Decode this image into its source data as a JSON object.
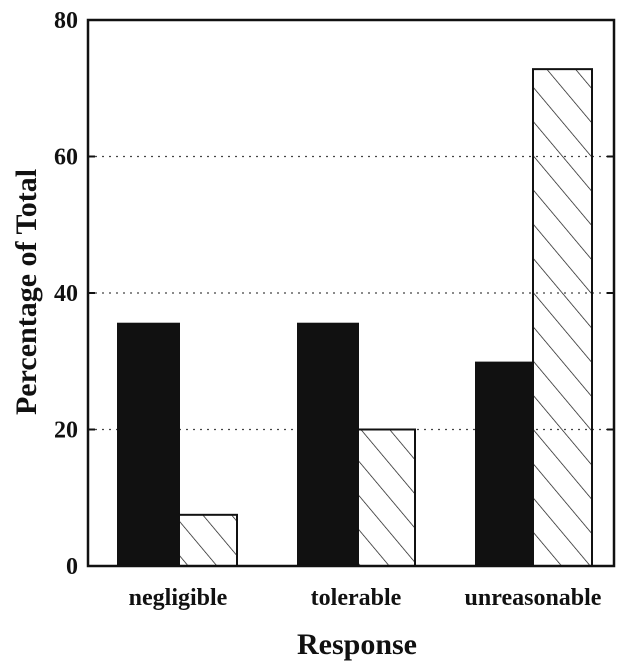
{
  "chart_data": {
    "type": "bar",
    "title": "",
    "xlabel": "Response",
    "ylabel": "Percentage of Total",
    "categories": [
      "negligible",
      "tolerable",
      "unreasonable"
    ],
    "series": [
      {
        "values": [
          35.5,
          35.5,
          29.8
        ],
        "fill": "solid",
        "color": "#111111"
      },
      {
        "values": [
          7.5,
          20,
          72.8
        ],
        "fill": "hatched",
        "color": "#ffffff"
      }
    ],
    "ylim": [
      0,
      80
    ],
    "yticks": [
      0,
      20,
      40,
      60,
      80
    ],
    "grid": "horizontal dotted",
    "legend": "none"
  }
}
